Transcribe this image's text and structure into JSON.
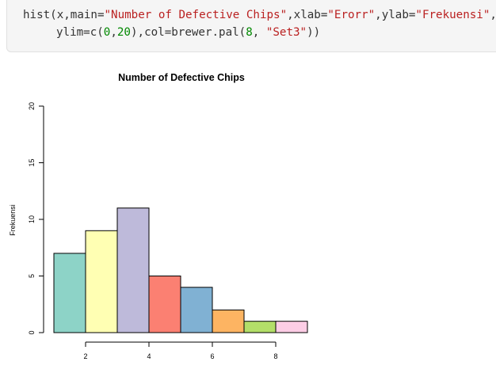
{
  "code": {
    "line1": {
      "fn": "hist(x,main=",
      "main_str": "\"Number of Defective Chips\"",
      "sep1": ",xlab=",
      "xlab_str": "\"Erorr\"",
      "sep2": ",ylab=",
      "ylab_str": "\"Frekuensi\"",
      "tail": ","
    },
    "line2": {
      "head": "ylim=c(",
      "n0": "0",
      "comma": ",",
      "n20": "20",
      "mid": "),col=brewer.pal(",
      "n8": "8",
      "sep": ", ",
      "set_str": "\"Set3\"",
      "end": "))"
    }
  },
  "chart_data": {
    "type": "bar",
    "title": "Number of Defective Chips",
    "xlabel": "",
    "ylabel": "Frekuensi",
    "bins": [
      [
        1,
        2
      ],
      [
        2,
        3
      ],
      [
        3,
        4
      ],
      [
        4,
        5
      ],
      [
        5,
        6
      ],
      [
        6,
        7
      ],
      [
        7,
        8
      ],
      [
        8,
        9
      ]
    ],
    "values": [
      7,
      9,
      11,
      5,
      4,
      2,
      1,
      1
    ],
    "colors": [
      "#8DD3C7",
      "#FFFFB3",
      "#BEBADA",
      "#FB8072",
      "#80B1D3",
      "#FDB462",
      "#B3DE69",
      "#FCCDE5"
    ],
    "ylim": [
      0,
      20
    ],
    "yticks": [
      0,
      5,
      10,
      15,
      20
    ],
    "xticks": [
      2,
      4,
      6,
      8
    ],
    "grid": false
  }
}
